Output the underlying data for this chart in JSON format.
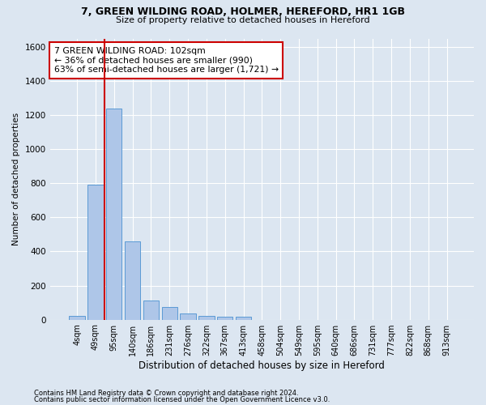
{
  "title": "7, GREEN WILDING ROAD, HOLMER, HEREFORD, HR1 1GB",
  "subtitle": "Size of property relative to detached houses in Hereford",
  "xlabel": "Distribution of detached houses by size in Hereford",
  "ylabel": "Number of detached properties",
  "footer_line1": "Contains HM Land Registry data © Crown copyright and database right 2024.",
  "footer_line2": "Contains public sector information licensed under the Open Government Licence v3.0.",
  "bar_labels": [
    "4sqm",
    "49sqm",
    "95sqm",
    "140sqm",
    "186sqm",
    "231sqm",
    "276sqm",
    "322sqm",
    "367sqm",
    "413sqm",
    "458sqm",
    "504sqm",
    "549sqm",
    "595sqm",
    "640sqm",
    "686sqm",
    "731sqm",
    "777sqm",
    "822sqm",
    "868sqm",
    "913sqm"
  ],
  "bar_values": [
    20,
    790,
    1240,
    460,
    110,
    75,
    35,
    20,
    15,
    15,
    0,
    0,
    0,
    0,
    0,
    0,
    0,
    0,
    0,
    0,
    0
  ],
  "bar_color": "#aec6e8",
  "bar_edge_color": "#5b9bd5",
  "vline_x": 1.5,
  "vline_color": "#cc0000",
  "annotation_text": "7 GREEN WILDING ROAD: 102sqm\n← 36% of detached houses are smaller (990)\n63% of semi-detached houses are larger (1,721) →",
  "annotation_box_color": "#cc0000",
  "ylim": [
    0,
    1650
  ],
  "yticks": [
    0,
    200,
    400,
    600,
    800,
    1000,
    1200,
    1400,
    1600
  ],
  "bg_color": "#dce6f1",
  "plot_bg_color": "#dce6f1",
  "grid_color": "#ffffff"
}
